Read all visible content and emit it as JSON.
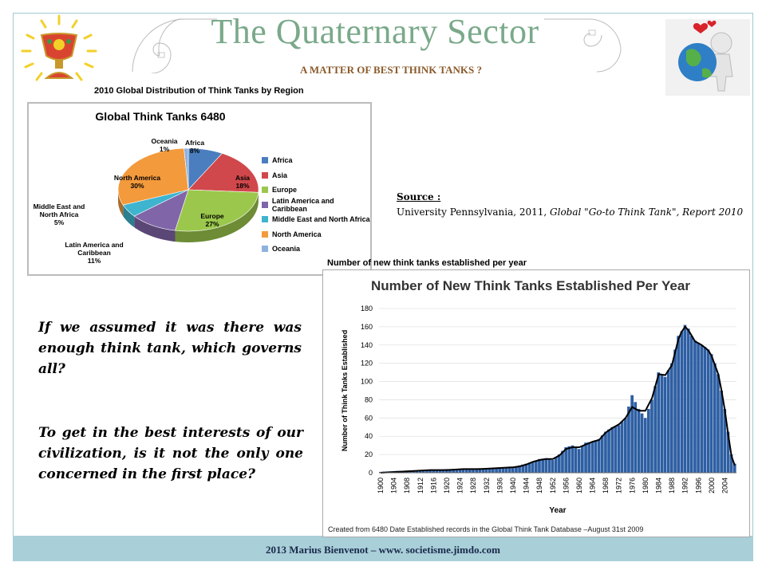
{
  "header": {
    "title": "The Quaternary Sector",
    "subtitle": "A MATTER OF BEST THINK TANKS ?"
  },
  "icons": {
    "left_logo": "golden-chalice-icon",
    "right_logo": "person-hugging-globe-icon",
    "spirals": "golden-spiral-icon"
  },
  "pie_caption": "2010 Global Distribution of Think Tanks by Region",
  "source": {
    "label": "Source :",
    "text": "University Pennsylvania, 2011, ",
    "italic": "Global \"Go-to Think Tank\", Report 2010"
  },
  "questions": {
    "q1": "If we assumed it was there was enough think tank, which governs all?",
    "q2": "To get in the best interests of our civilization, is it not the only one concerned in the first place?"
  },
  "bar_caption": "Number of new think tanks established per year",
  "bar_note": "Created from 6480 Date Established records in the Global Think Tank Database –August 31st 2009",
  "footer": "2013 Marius Bienvenot – www. societisme.jimdo.com",
  "chart_data": [
    {
      "type": "pie",
      "title": "Global Think Tanks 6480",
      "categories": [
        "Africa",
        "Asia",
        "Europe",
        "Latin America and Caribbean",
        "Middle East and North Africa",
        "North America",
        "Oceania"
      ],
      "values": [
        8,
        18,
        27,
        11,
        5,
        30,
        1
      ],
      "slice_labels": [
        "Africa\n8%",
        "Asia\n18%",
        "Europe\n27%",
        "Latin America and\nCaribbean\n11%",
        "Middle East and\nNorth Africa\n5%",
        "North America\n30%",
        "Oceania\n1%"
      ],
      "colors": [
        "#4a7ebf",
        "#d0484b",
        "#9bc84c",
        "#8065a8",
        "#3fb4cf",
        "#f39a3c",
        "#8fb2dd"
      ],
      "legend": "right"
    },
    {
      "type": "bar",
      "title": "Number of New Think Tanks Established Per Year",
      "xlabel": "Year",
      "ylabel": "Number of Think Tanks Established",
      "ylim": [
        0,
        180
      ],
      "yticks": [
        0,
        20,
        40,
        60,
        80,
        100,
        120,
        140,
        160,
        180
      ],
      "xlim": [
        1900,
        2008
      ],
      "xticks": [
        1900,
        1904,
        1908,
        1912,
        1916,
        1920,
        1924,
        1928,
        1932,
        1936,
        1940,
        1944,
        1948,
        1952,
        1956,
        1960,
        1964,
        1968,
        1972,
        1976,
        1980,
        1984,
        1988,
        1992,
        1996,
        2000,
        2004
      ],
      "bar_color": "#2e5fa3",
      "trend_color": "#000000",
      "x": [
        1900,
        1905,
        1910,
        1915,
        1920,
        1925,
        1930,
        1935,
        1940,
        1942,
        1944,
        1946,
        1948,
        1950,
        1952,
        1954,
        1956,
        1958,
        1960,
        1962,
        1964,
        1966,
        1968,
        1970,
        1972,
        1974,
        1976,
        1978,
        1980,
        1982,
        1984,
        1986,
        1988,
        1990,
        1991,
        1992,
        1993,
        1994,
        1995,
        1996,
        1997,
        1998,
        1999,
        2000,
        2001,
        2002,
        2003,
        2004,
        2005,
        2006,
        2007
      ],
      "values": [
        1,
        2,
        2,
        3,
        4,
        4,
        5,
        5,
        6,
        8,
        10,
        12,
        15,
        16,
        14,
        20,
        28,
        30,
        26,
        33,
        34,
        37,
        45,
        50,
        52,
        60,
        85,
        70,
        60,
        80,
        110,
        105,
        120,
        150,
        155,
        162,
        158,
        150,
        145,
        142,
        140,
        138,
        135,
        130,
        120,
        108,
        90,
        70,
        45,
        20,
        10
      ],
      "trend": [
        0,
        1,
        2,
        3,
        3,
        4,
        4,
        5,
        6,
        7,
        9,
        12,
        14,
        15,
        15,
        19,
        26,
        28,
        28,
        31,
        34,
        36,
        44,
        49,
        53,
        60,
        72,
        68,
        68,
        82,
        108,
        107,
        118,
        147,
        155,
        160,
        156,
        150,
        144,
        142,
        140,
        137,
        134,
        128,
        118,
        108,
        90,
        68,
        42,
        18,
        8
      ]
    }
  ]
}
